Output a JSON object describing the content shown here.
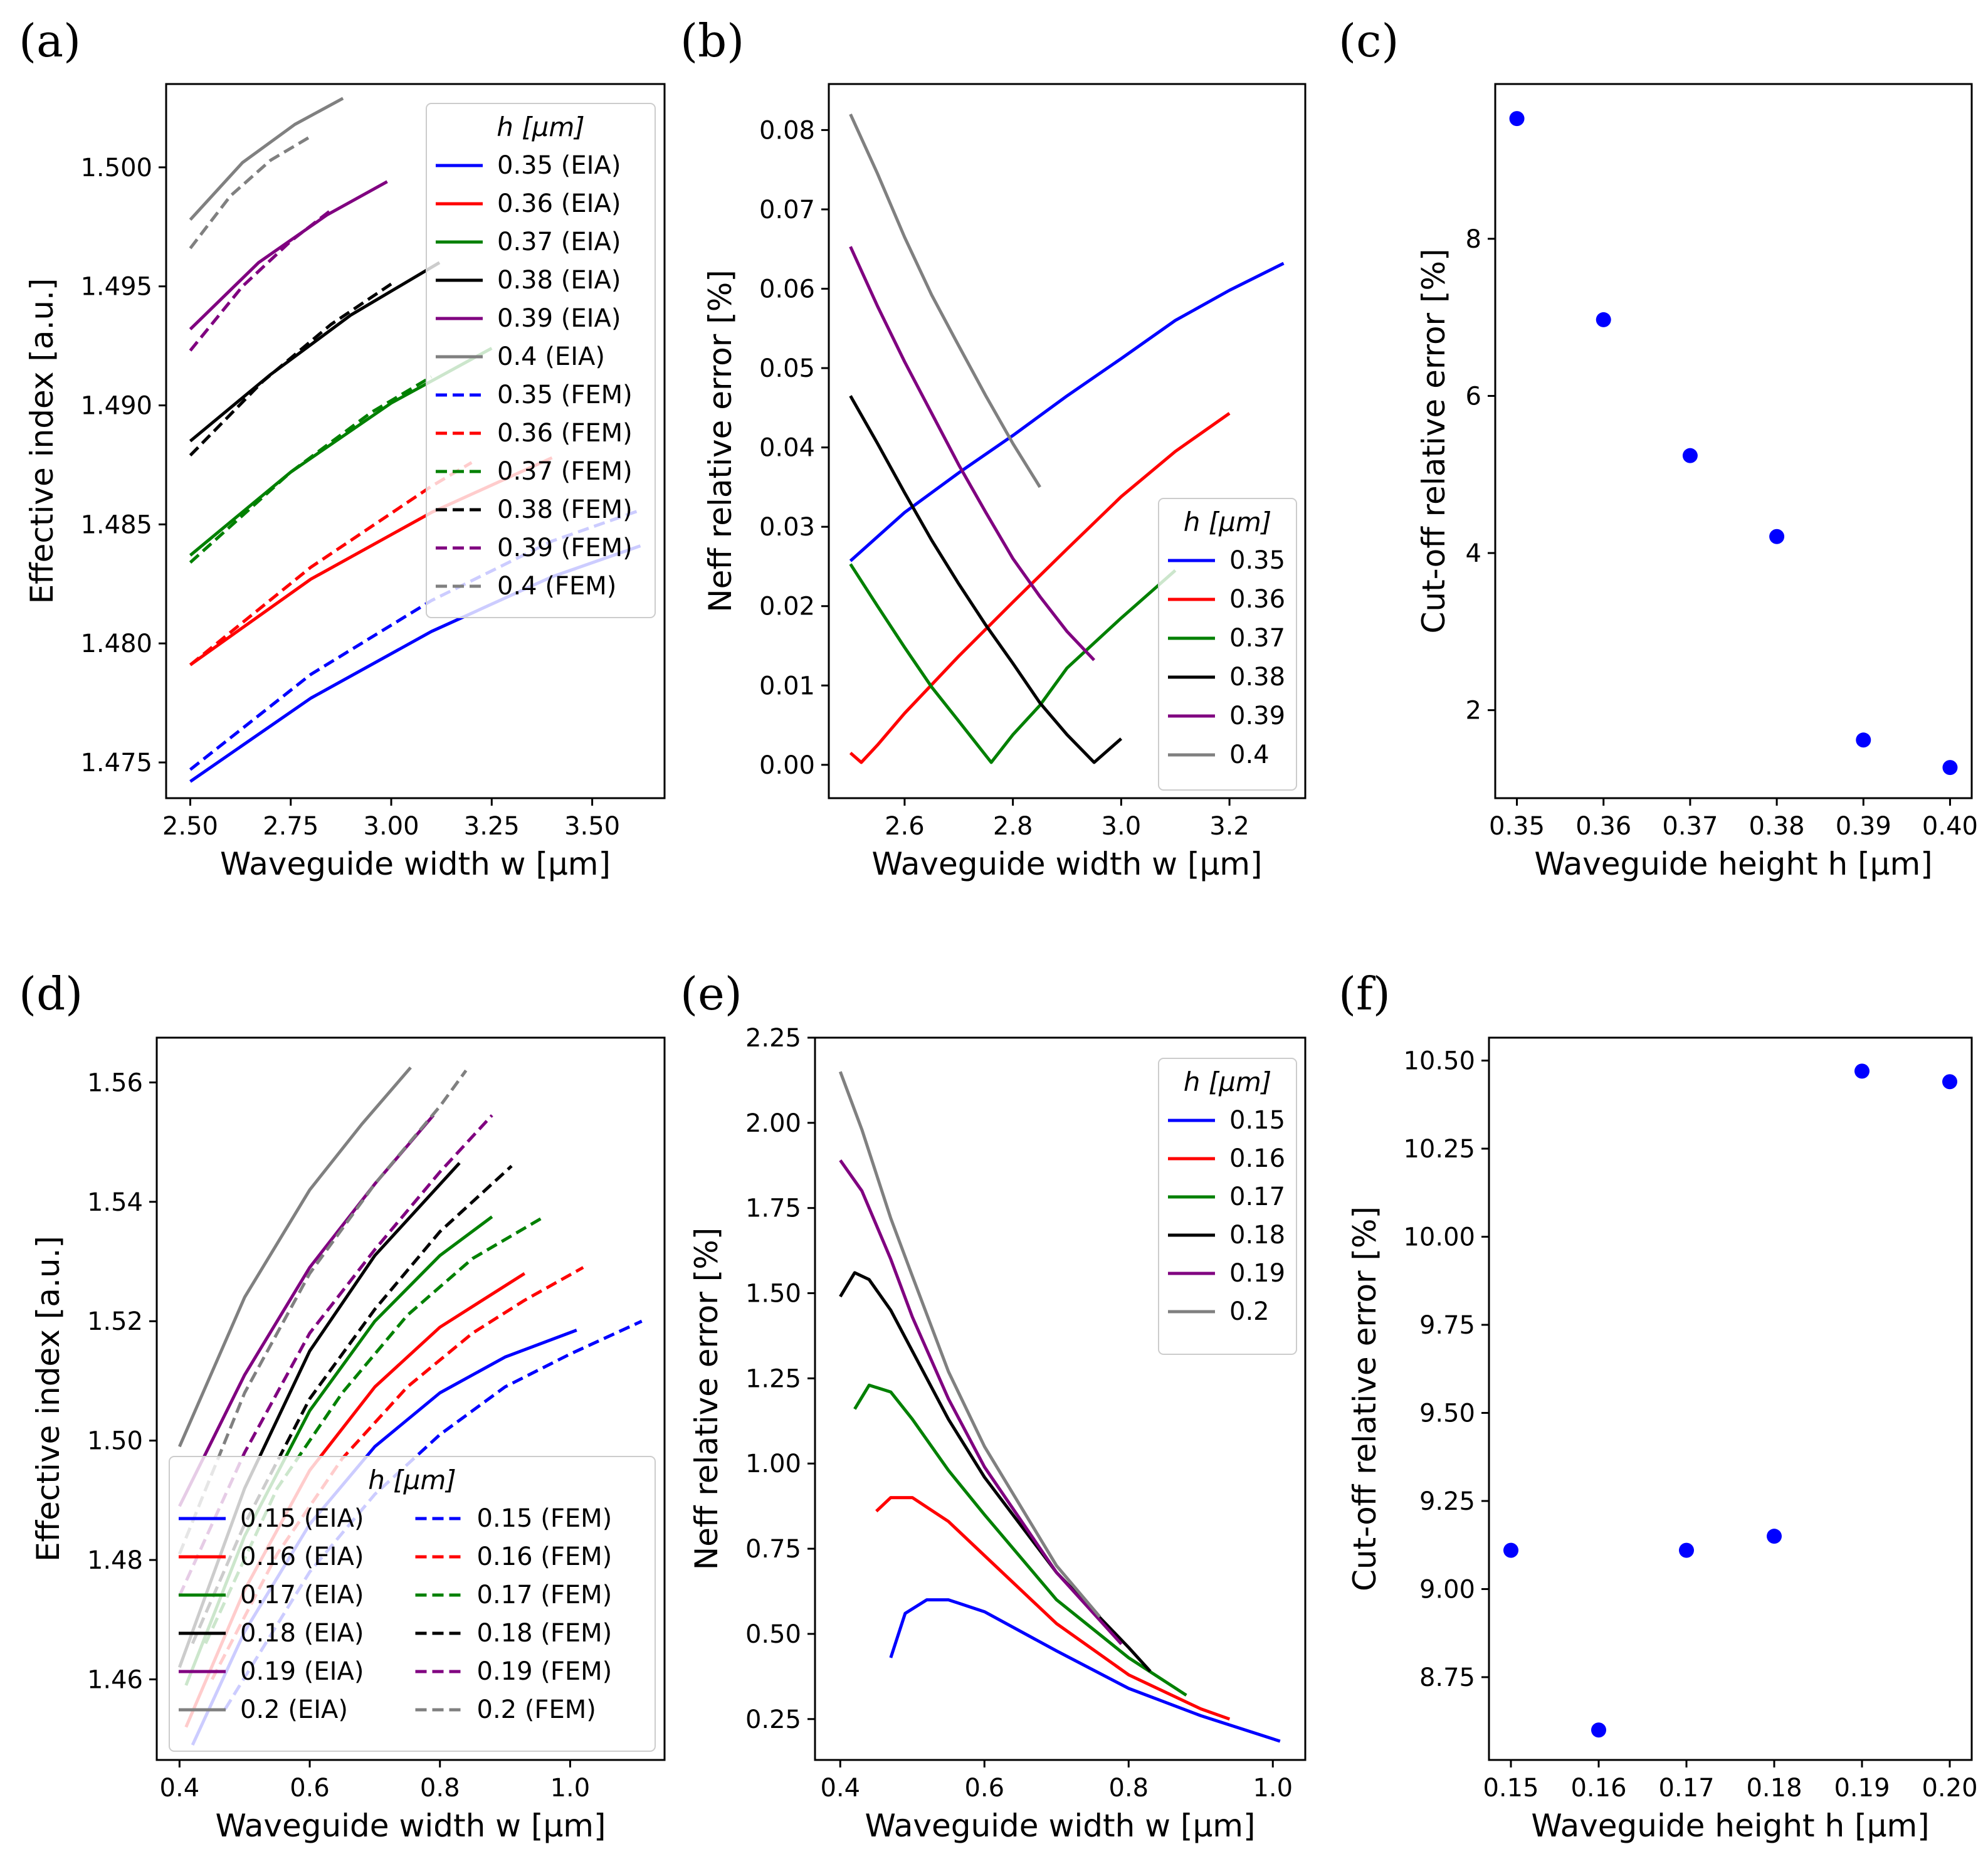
{
  "chart_data": [
    {
      "id": "a",
      "type": "line",
      "panel_label": "(a)",
      "xlabel": "Waveguide width w [μm]",
      "ylabel": "Effective index [a.u.]",
      "xlim": [
        2.44,
        3.68
      ],
      "ylim": [
        1.4735,
        1.5035
      ],
      "xticks": [
        2.5,
        2.75,
        3.0,
        3.25,
        3.5
      ],
      "xtick_labels": [
        "2.50",
        "2.75",
        "3.00",
        "3.25",
        "3.50"
      ],
      "yticks": [
        1.475,
        1.48,
        1.485,
        1.49,
        1.495,
        1.5
      ],
      "ytick_labels": [
        "1.475",
        "1.480",
        "1.485",
        "1.490",
        "1.495",
        "1.500"
      ],
      "legend": {
        "title": "h [μm]",
        "position": "top-right",
        "columns": 1
      },
      "series": [
        {
          "name": "0.35 (EIA)",
          "color": "#0000ff",
          "dash": false,
          "x": [
            2.5,
            2.8,
            3.1,
            3.4,
            3.62
          ],
          "y": [
            1.4742,
            1.4777,
            1.4805,
            1.4828,
            1.4841
          ]
        },
        {
          "name": "0.36 (EIA)",
          "color": "#ff0000",
          "dash": false,
          "x": [
            2.5,
            2.8,
            3.1,
            3.4
          ],
          "y": [
            1.4791,
            1.4827,
            1.4855,
            1.4878
          ]
        },
        {
          "name": "0.37 (EIA)",
          "color": "#008000",
          "dash": false,
          "x": [
            2.5,
            2.75,
            3.0,
            3.25
          ],
          "y": [
            1.4837,
            1.4872,
            1.4901,
            1.4924
          ]
        },
        {
          "name": "0.38 (EIA)",
          "color": "#000000",
          "dash": false,
          "x": [
            2.5,
            2.7,
            2.9,
            3.12
          ],
          "y": [
            1.4885,
            1.4913,
            1.4938,
            1.496
          ]
        },
        {
          "name": "0.39 (EIA)",
          "color": "#800080",
          "dash": false,
          "x": [
            2.5,
            2.67,
            2.84,
            2.99
          ],
          "y": [
            1.4932,
            1.496,
            1.498,
            1.4994
          ]
        },
        {
          "name": "0.4 (EIA)",
          "color": "#808080",
          "dash": false,
          "x": [
            2.5,
            2.63,
            2.76,
            2.88
          ],
          "y": [
            1.4978,
            1.5002,
            1.5018,
            1.5029
          ]
        },
        {
          "name": "0.35 (FEM)",
          "color": "#0000ff",
          "dash": true,
          "x": [
            2.5,
            2.8,
            3.1,
            3.4,
            3.62
          ],
          "y": [
            1.4747,
            1.4787,
            1.4818,
            1.4843,
            1.4856
          ]
        },
        {
          "name": "0.36 (FEM)",
          "color": "#ff0000",
          "dash": true,
          "x": [
            2.5,
            2.8,
            3.1,
            3.2
          ],
          "y": [
            1.4791,
            1.4832,
            1.4866,
            1.4876
          ]
        },
        {
          "name": "0.37 (FEM)",
          "color": "#008000",
          "dash": true,
          "x": [
            2.5,
            2.75,
            2.95,
            3.1
          ],
          "y": [
            1.4834,
            1.4872,
            1.4897,
            1.4912
          ]
        },
        {
          "name": "0.38 (FEM)",
          "color": "#000000",
          "dash": true,
          "x": [
            2.5,
            2.68,
            2.85,
            3.0
          ],
          "y": [
            1.4879,
            1.491,
            1.4934,
            1.4951
          ]
        },
        {
          "name": "0.39 (FEM)",
          "color": "#800080",
          "dash": true,
          "x": [
            2.5,
            2.63,
            2.75,
            2.85
          ],
          "y": [
            1.4923,
            1.495,
            1.4969,
            1.4982
          ]
        },
        {
          "name": "0.4 (FEM)",
          "color": "#808080",
          "dash": true,
          "x": [
            2.5,
            2.6,
            2.7,
            2.8
          ],
          "y": [
            1.4966,
            1.4988,
            1.5003,
            1.5013
          ]
        }
      ]
    },
    {
      "id": "b",
      "type": "line",
      "panel_label": "(b)",
      "xlabel": "Waveguide width w [μm]",
      "ylabel": "Neff relative error [%]",
      "xlim": [
        2.46,
        3.34
      ],
      "ylim": [
        -0.0042,
        0.0858
      ],
      "xticks": [
        2.6,
        2.8,
        3.0,
        3.2
      ],
      "xtick_labels": [
        "2.6",
        "2.8",
        "3.0",
        "3.2"
      ],
      "yticks": [
        0.0,
        0.01,
        0.02,
        0.03,
        0.04,
        0.05,
        0.06,
        0.07,
        0.08
      ],
      "ytick_labels": [
        "0.00",
        "0.01",
        "0.02",
        "0.03",
        "0.04",
        "0.05",
        "0.06",
        "0.07",
        "0.08"
      ],
      "legend": {
        "title": "h [μm]",
        "position": "lower-right",
        "columns": 1
      },
      "series": [
        {
          "name": "0.35",
          "color": "#0000ff",
          "x": [
            2.5,
            2.6,
            2.7,
            2.8,
            2.9,
            3.0,
            3.1,
            3.2,
            3.3
          ],
          "y": [
            0.0257,
            0.0318,
            0.0368,
            0.0415,
            0.0465,
            0.0512,
            0.056,
            0.0598,
            0.0632
          ]
        },
        {
          "name": "0.36",
          "color": "#ff0000",
          "x": [
            2.5,
            2.52,
            2.55,
            2.6,
            2.7,
            2.8,
            2.9,
            3.0,
            3.1,
            3.2
          ],
          "y": [
            0.0015,
            0.0003,
            0.0025,
            0.0065,
            0.0137,
            0.0205,
            0.0272,
            0.0338,
            0.0395,
            0.0443
          ]
        },
        {
          "name": "0.37",
          "color": "#008000",
          "x": [
            2.5,
            2.55,
            2.6,
            2.65,
            2.7,
            2.76,
            2.8,
            2.85,
            2.9,
            3.0,
            3.1
          ],
          "y": [
            0.0253,
            0.02,
            0.0148,
            0.0098,
            0.0055,
            0.0003,
            0.0038,
            0.0075,
            0.0122,
            0.0185,
            0.0245
          ]
        },
        {
          "name": "0.38",
          "color": "#000000",
          "x": [
            2.5,
            2.55,
            2.6,
            2.65,
            2.7,
            2.75,
            2.8,
            2.85,
            2.9,
            2.95,
            3.0
          ],
          "y": [
            0.0465,
            0.0405,
            0.0343,
            0.0283,
            0.0228,
            0.0176,
            0.0128,
            0.0078,
            0.0038,
            0.0003,
            0.0033
          ]
        },
        {
          "name": "0.39",
          "color": "#800080",
          "x": [
            2.5,
            2.55,
            2.6,
            2.65,
            2.7,
            2.75,
            2.8,
            2.85,
            2.9,
            2.95
          ],
          "y": [
            0.0653,
            0.0578,
            0.0508,
            0.0443,
            0.0378,
            0.0318,
            0.026,
            0.0212,
            0.0168,
            0.0132
          ]
        },
        {
          "name": "0.4",
          "color": "#808080",
          "x": [
            2.5,
            2.55,
            2.6,
            2.65,
            2.7,
            2.75,
            2.8,
            2.85
          ],
          "y": [
            0.082,
            0.0745,
            0.0665,
            0.0592,
            0.0528,
            0.0465,
            0.0405,
            0.035
          ]
        }
      ]
    },
    {
      "id": "c",
      "type": "scatter",
      "panel_label": "(c)",
      "xlabel": "Waveguide height h [μm]",
      "ylabel": "Cut-off relative error [%]",
      "xlim": [
        0.3475,
        0.4025
      ],
      "ylim": [
        0.88,
        9.97
      ],
      "xticks": [
        0.35,
        0.36,
        0.37,
        0.38,
        0.39,
        0.4
      ],
      "xtick_labels": [
        "0.35",
        "0.36",
        "0.37",
        "0.38",
        "0.39",
        "0.40"
      ],
      "yticks": [
        2,
        4,
        6,
        8
      ],
      "ytick_labels": [
        "2",
        "4",
        "6",
        "8"
      ],
      "points": {
        "color": "#0000ff",
        "x": [
          0.35,
          0.36,
          0.37,
          0.38,
          0.39,
          0.4
        ],
        "y": [
          9.53,
          6.97,
          5.24,
          4.21,
          1.62,
          1.27
        ]
      }
    },
    {
      "id": "d",
      "type": "line",
      "panel_label": "(d)",
      "xlabel": "Waveguide width w [μm]",
      "ylabel": "Effective index [a.u.]",
      "xlim": [
        0.365,
        1.145
      ],
      "ylim": [
        1.4465,
        1.5675
      ],
      "xticks": [
        0.4,
        0.6,
        0.8,
        1.0
      ],
      "xtick_labels": [
        "0.4",
        "0.6",
        "0.8",
        "1.0"
      ],
      "yticks": [
        1.46,
        1.48,
        1.5,
        1.52,
        1.54,
        1.56
      ],
      "ytick_labels": [
        "1.46",
        "1.48",
        "1.50",
        "1.52",
        "1.54",
        "1.56"
      ],
      "legend": {
        "title": "h [μm]",
        "position": "lower-left",
        "columns": 2
      },
      "series": [
        {
          "name": "0.15 (EIA)",
          "color": "#0000ff",
          "dash": false,
          "x": [
            0.42,
            0.5,
            0.6,
            0.7,
            0.8,
            0.9,
            1.01
          ],
          "y": [
            1.449,
            1.468,
            1.486,
            1.499,
            1.508,
            1.514,
            1.5185
          ]
        },
        {
          "name": "0.16 (EIA)",
          "color": "#ff0000",
          "dash": false,
          "x": [
            0.41,
            0.5,
            0.6,
            0.7,
            0.8,
            0.93
          ],
          "y": [
            1.452,
            1.475,
            1.495,
            1.509,
            1.519,
            1.528
          ]
        },
        {
          "name": "0.17 (EIA)",
          "color": "#008000",
          "dash": false,
          "x": [
            0.41,
            0.5,
            0.6,
            0.7,
            0.8,
            0.88
          ],
          "y": [
            1.459,
            1.484,
            1.505,
            1.52,
            1.531,
            1.5375
          ]
        },
        {
          "name": "0.18 (EIA)",
          "color": "#000000",
          "dash": false,
          "x": [
            0.4,
            0.5,
            0.6,
            0.7,
            0.83
          ],
          "y": [
            1.462,
            1.492,
            1.515,
            1.531,
            1.5465
          ]
        },
        {
          "name": "0.19 (EIA)",
          "color": "#800080",
          "dash": false,
          "x": [
            0.4,
            0.5,
            0.6,
            0.7,
            0.79
          ],
          "y": [
            1.489,
            1.511,
            1.529,
            1.543,
            1.5545
          ]
        },
        {
          "name": "0.2 (EIA)",
          "color": "#808080",
          "dash": false,
          "x": [
            0.4,
            0.5,
            0.6,
            0.68,
            0.755
          ],
          "y": [
            1.499,
            1.524,
            1.542,
            1.553,
            1.5625
          ]
        },
        {
          "name": "0.15 (FEM)",
          "color": "#0000ff",
          "dash": true,
          "x": [
            0.47,
            0.6,
            0.7,
            0.8,
            0.9,
            1.0,
            1.11
          ],
          "y": [
            1.455,
            1.478,
            1.491,
            1.501,
            1.509,
            1.5145,
            1.52
          ]
        },
        {
          "name": "0.16 (FEM)",
          "color": "#ff0000",
          "dash": true,
          "x": [
            0.45,
            0.55,
            0.65,
            0.75,
            0.85,
            0.93,
            1.02
          ],
          "y": [
            1.46,
            1.481,
            1.497,
            1.509,
            1.518,
            1.5235,
            1.529
          ]
        },
        {
          "name": "0.17 (FEM)",
          "color": "#008000",
          "dash": true,
          "x": [
            0.44,
            0.55,
            0.65,
            0.75,
            0.85,
            0.96
          ],
          "y": [
            1.466,
            1.492,
            1.508,
            1.521,
            1.5305,
            1.5375
          ]
        },
        {
          "name": "0.18 (FEM)",
          "color": "#000000",
          "dash": true,
          "x": [
            0.42,
            0.5,
            0.6,
            0.7,
            0.8,
            0.91
          ],
          "y": [
            1.466,
            1.486,
            1.507,
            1.522,
            1.535,
            1.546
          ]
        },
        {
          "name": "0.19 (FEM)",
          "color": "#800080",
          "dash": true,
          "x": [
            0.4,
            0.5,
            0.6,
            0.7,
            0.8,
            0.88
          ],
          "y": [
            1.474,
            1.498,
            1.518,
            1.532,
            1.545,
            1.5545
          ]
        },
        {
          "name": "0.2 (FEM)",
          "color": "#808080",
          "dash": true,
          "x": [
            0.4,
            0.5,
            0.6,
            0.7,
            0.8,
            0.84
          ],
          "y": [
            1.481,
            1.508,
            1.528,
            1.543,
            1.556,
            1.562
          ]
        }
      ]
    },
    {
      "id": "e",
      "type": "line",
      "panel_label": "(e)",
      "xlabel": "Waveguide width w [μm]",
      "ylabel": "Neff relative error [%]",
      "xlim": [
        0.365,
        1.045
      ],
      "ylim": [
        0.13,
        2.25
      ],
      "xticks": [
        0.4,
        0.6,
        0.8,
        1.0
      ],
      "xtick_labels": [
        "0.4",
        "0.6",
        "0.8",
        "1.0"
      ],
      "yticks": [
        0.25,
        0.5,
        0.75,
        1.0,
        1.25,
        1.5,
        1.75,
        2.0,
        2.25
      ],
      "ytick_labels": [
        "0.25",
        "0.50",
        "0.75",
        "1.00",
        "1.25",
        "1.50",
        "1.75",
        "2.00",
        "2.25"
      ],
      "legend": {
        "title": "h [μm]",
        "position": "top-right",
        "columns": 1
      },
      "series": [
        {
          "name": "0.15",
          "color": "#0000ff",
          "x": [
            0.47,
            0.49,
            0.52,
            0.55,
            0.6,
            0.7,
            0.8,
            0.9,
            1.01
          ],
          "y": [
            0.43,
            0.56,
            0.6,
            0.6,
            0.565,
            0.45,
            0.34,
            0.26,
            0.185
          ]
        },
        {
          "name": "0.16",
          "color": "#ff0000",
          "x": [
            0.45,
            0.47,
            0.5,
            0.55,
            0.6,
            0.7,
            0.8,
            0.9,
            0.94
          ],
          "y": [
            0.86,
            0.9,
            0.9,
            0.83,
            0.73,
            0.53,
            0.38,
            0.28,
            0.25
          ]
        },
        {
          "name": "0.17",
          "color": "#008000",
          "x": [
            0.42,
            0.44,
            0.47,
            0.5,
            0.55,
            0.6,
            0.7,
            0.8,
            0.88
          ],
          "y": [
            1.16,
            1.23,
            1.21,
            1.13,
            0.98,
            0.85,
            0.6,
            0.43,
            0.32
          ]
        },
        {
          "name": "0.18",
          "color": "#000000",
          "x": [
            0.4,
            0.42,
            0.44,
            0.47,
            0.5,
            0.55,
            0.6,
            0.7,
            0.8,
            0.83
          ],
          "y": [
            1.49,
            1.56,
            1.54,
            1.45,
            1.33,
            1.13,
            0.96,
            0.68,
            0.46,
            0.39
          ]
        },
        {
          "name": "0.19",
          "color": "#800080",
          "x": [
            0.4,
            0.43,
            0.47,
            0.5,
            0.55,
            0.6,
            0.7,
            0.79
          ],
          "y": [
            1.89,
            1.8,
            1.6,
            1.43,
            1.19,
            0.99,
            0.68,
            0.47
          ]
        },
        {
          "name": "0.2",
          "color": "#808080",
          "x": [
            0.4,
            0.43,
            0.47,
            0.5,
            0.55,
            0.6,
            0.7,
            0.76
          ],
          "y": [
            2.15,
            1.98,
            1.72,
            1.55,
            1.27,
            1.05,
            0.7,
            0.55
          ]
        }
      ]
    },
    {
      "id": "f",
      "type": "scatter",
      "panel_label": "(f)",
      "xlabel": "Waveguide height h [μm]",
      "ylabel": "Cut-off relative error [%]",
      "xlim": [
        0.1475,
        0.2025
      ],
      "ylim": [
        8.515,
        10.565
      ],
      "xticks": [
        0.15,
        0.16,
        0.17,
        0.18,
        0.19,
        0.2
      ],
      "xtick_labels": [
        "0.15",
        "0.16",
        "0.17",
        "0.18",
        "0.19",
        "0.20"
      ],
      "yticks": [
        8.75,
        9.0,
        9.25,
        9.5,
        9.75,
        10.0,
        10.25,
        10.5
      ],
      "ytick_labels": [
        "8.75",
        "9.00",
        "9.25",
        "9.50",
        "9.75",
        "10.00",
        "10.25",
        "10.50"
      ],
      "points": {
        "color": "#0000ff",
        "x": [
          0.15,
          0.16,
          0.17,
          0.18,
          0.19,
          0.2
        ],
        "y": [
          9.11,
          8.6,
          9.11,
          9.15,
          10.47,
          10.44
        ]
      }
    }
  ]
}
